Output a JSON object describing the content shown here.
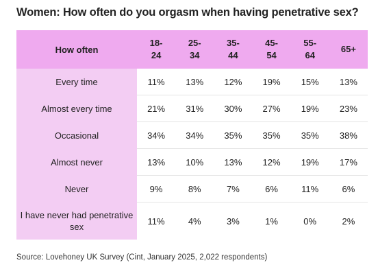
{
  "header": {
    "title": "Women: How often do you orgasm when having penetrative sex?"
  },
  "table": {
    "columns": [
      "How often",
      "18-24",
      "25-34",
      "35-44",
      "45-54",
      "55-64",
      "65+"
    ],
    "rows": [
      [
        "Every time",
        "11%",
        "13%",
        "12%",
        "19%",
        "15%",
        "13%"
      ],
      [
        "Almost every time",
        "21%",
        "31%",
        "30%",
        "27%",
        "19%",
        "23%"
      ],
      [
        "Occasional",
        "34%",
        "34%",
        "35%",
        "35%",
        "35%",
        "38%"
      ],
      [
        "Almost never",
        "13%",
        "10%",
        "13%",
        "12%",
        "19%",
        "17%"
      ],
      [
        "Never",
        "9%",
        "8%",
        "7%",
        "6%",
        "11%",
        "6%"
      ],
      [
        "I have never had penetrative sex",
        "11%",
        "4%",
        "3%",
        "1%",
        "0%",
        "2%"
      ]
    ]
  },
  "footer": {
    "source": "Source: Lovehoney UK Survey (Cint, January 2025, 2,022 respondents)"
  }
}
